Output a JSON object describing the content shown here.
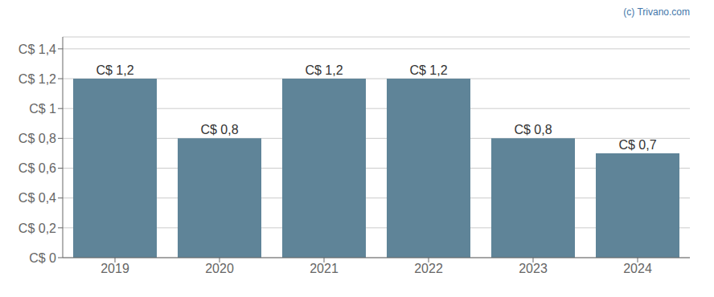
{
  "chart_data": {
    "type": "bar",
    "categories": [
      "2019",
      "2020",
      "2021",
      "2022",
      "2023",
      "2024"
    ],
    "values": [
      1.2,
      0.8,
      1.2,
      1.2,
      0.8,
      0.7
    ],
    "value_labels": [
      "C$ 1,2",
      "C$ 0,8",
      "C$ 1,2",
      "C$ 1,2",
      "C$ 0,8",
      "C$ 0,7"
    ],
    "data_labels": true,
    "color": "#5f8498",
    "ylim": [
      0,
      1.48
    ],
    "yticks": [
      {
        "value": 0,
        "label": "C$ 0"
      },
      {
        "value": 0.2,
        "label": "C$ 0,2"
      },
      {
        "value": 0.4,
        "label": "C$ 0,4"
      },
      {
        "value": 0.6,
        "label": "C$ 0,6"
      },
      {
        "value": 0.8,
        "label": "C$ 0,8"
      },
      {
        "value": 1.0,
        "label": "C$ 1"
      },
      {
        "value": 1.2,
        "label": "C$ 1,2"
      },
      {
        "value": 1.4,
        "label": "C$ 1,4"
      }
    ],
    "grid": true,
    "annotations": [
      {
        "text": "(c) Trivano.com",
        "color": "#4477aa"
      }
    ]
  }
}
